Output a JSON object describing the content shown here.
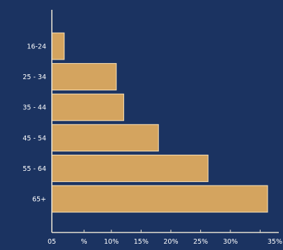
{
  "chart_data": {
    "type": "bar",
    "orientation": "horizontal",
    "title": "",
    "xlabel": "",
    "ylabel": "",
    "categories": [
      "16-24",
      "25 - 34",
      "35 - 44",
      "45 - 54",
      "55 - 64",
      "65+"
    ],
    "values": [
      2.5,
      13,
      14.5,
      21.5,
      31.5,
      43.5
    ],
    "xlim": [
      0,
      43.5
    ],
    "ticks": [
      {
        "label": "05",
        "value": 0
      },
      {
        "label": "%",
        "value": 6.5
      },
      {
        "label": "10%",
        "value": 12
      },
      {
        "label": "15%",
        "value": 18
      },
      {
        "label": "20%",
        "value": 24
      },
      {
        "label": "25%",
        "value": 30
      },
      {
        "label": "30%",
        "value": 36
      },
      {
        "label": "35%",
        "value": 42
      }
    ],
    "grid": false,
    "legend": "none",
    "colors": {
      "background": "#1b3361",
      "bar": "#d4a45f",
      "bar_stroke": "#fbe3b8",
      "axis": "#e8e2d2",
      "text": "#ffffff"
    }
  }
}
